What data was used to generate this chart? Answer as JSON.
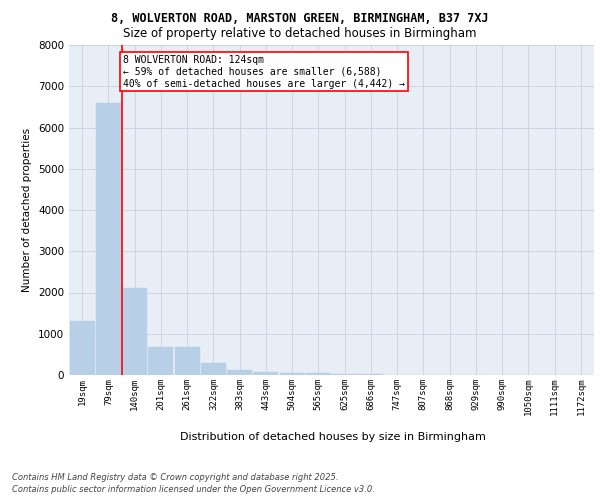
{
  "title1": "8, WOLVERTON ROAD, MARSTON GREEN, BIRMINGHAM, B37 7XJ",
  "title2": "Size of property relative to detached houses in Birmingham",
  "xlabel": "Distribution of detached houses by size in Birmingham",
  "ylabel": "Number of detached properties",
  "bar_values": [
    1300,
    6600,
    2100,
    680,
    680,
    300,
    130,
    80,
    50,
    50,
    30,
    20,
    10,
    10,
    5,
    5,
    5,
    5,
    5,
    5
  ],
  "bin_labels": [
    "19sqm",
    "79sqm",
    "140sqm",
    "201sqm",
    "261sqm",
    "322sqm",
    "383sqm",
    "443sqm",
    "504sqm",
    "565sqm",
    "625sqm",
    "686sqm",
    "747sqm",
    "807sqm",
    "868sqm",
    "929sqm",
    "990sqm",
    "1050sqm",
    "1111sqm",
    "1172sqm"
  ],
  "bar_color": "#b8cfe8",
  "bar_edgecolor": "#b8cfe8",
  "annotation_text": "8 WOLVERTON ROAD: 124sqm\n← 59% of detached houses are smaller (6,588)\n40% of semi-detached houses are larger (4,442) →",
  "red_line_x": 1.5,
  "ylim": [
    0,
    8000
  ],
  "yticks": [
    0,
    1000,
    2000,
    3000,
    4000,
    5000,
    6000,
    7000,
    8000
  ],
  "grid_color": "#ccd5e5",
  "background_color": "#e8eef5",
  "footer1": "Contains HM Land Registry data © Crown copyright and database right 2025.",
  "footer2": "Contains public sector information licensed under the Open Government Licence v3.0."
}
